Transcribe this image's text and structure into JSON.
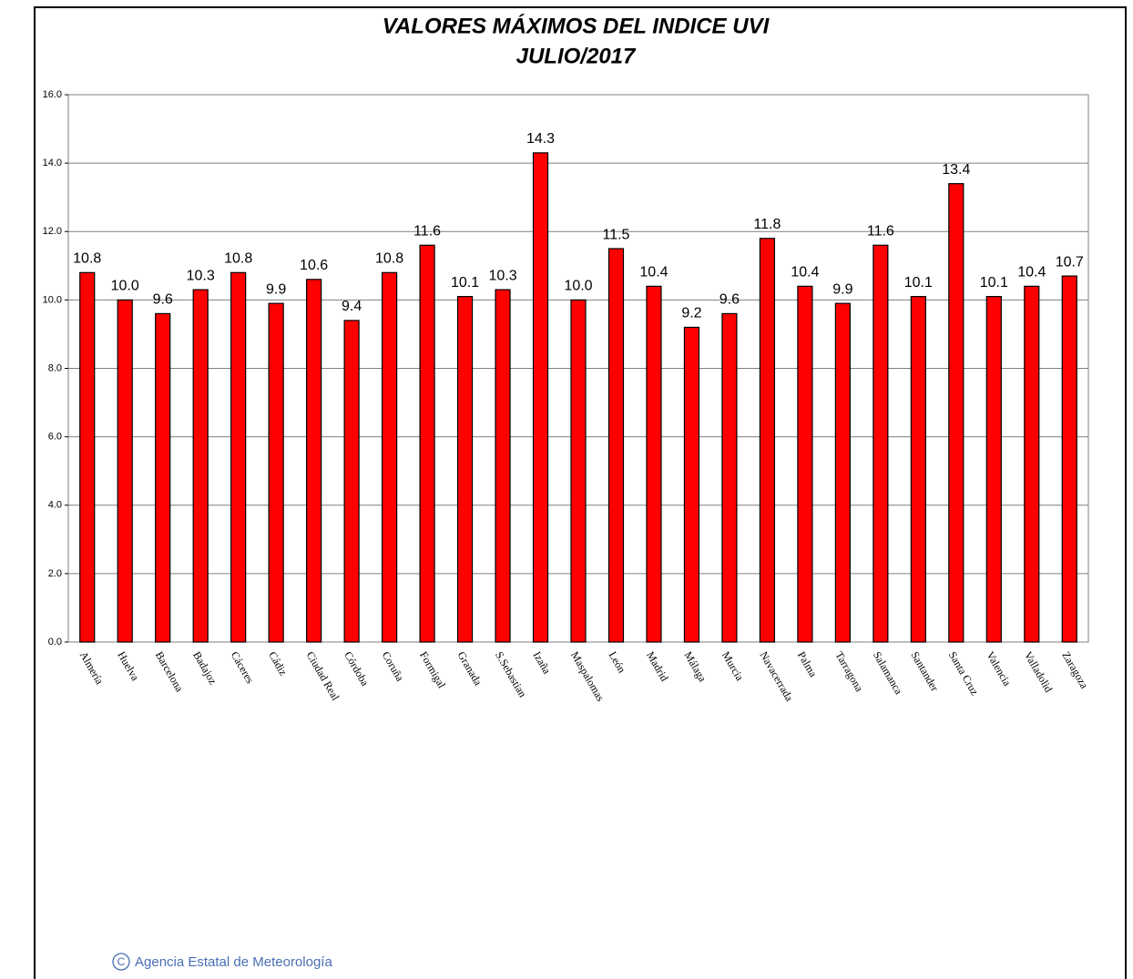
{
  "chart_data": {
    "type": "bar",
    "title": "VALORES MÁXIMOS DEL INDICE UVI",
    "subtitle": "JULIO/2017",
    "categories": [
      "Almería",
      "Huelva",
      "Barcelona",
      "Badajoz",
      "Cáceres",
      "Cádiz",
      "Ciudad Real",
      "Córdoba",
      "Coruña",
      "Formigal",
      "Granada",
      "S.Sebastian",
      "Izaña",
      "Maspalomas",
      "León",
      "Madrid",
      "Málaga",
      "Murcia",
      "Navacerrada",
      "Palma",
      "Tarragona",
      "Salamanca",
      "Santander",
      "Santa Cruz",
      "Valencia",
      "Valladolid",
      "Zaragoza"
    ],
    "values": [
      10.8,
      10.0,
      9.6,
      10.3,
      10.8,
      9.9,
      10.6,
      9.4,
      10.8,
      11.6,
      10.1,
      10.3,
      14.3,
      10.0,
      11.5,
      10.4,
      9.2,
      9.6,
      11.8,
      10.4,
      9.9,
      11.6,
      10.1,
      13.4,
      10.1,
      10.4,
      10.7
    ],
    "value_labels": [
      "10.8",
      "10.0",
      "9.6",
      "10.3",
      "10.8",
      "9.9",
      "10.6",
      "9.4",
      "10.8",
      "11.6",
      "10.1",
      "10.3",
      "14.3",
      "10.0",
      "11.5",
      "10.4",
      "9.2",
      "9.6",
      "11.8",
      "10.4",
      "9.9",
      "11.6",
      "10.1",
      "13.4",
      "10.1",
      "10.4",
      "10.7"
    ],
    "color": "#ff0000",
    "ylim": [
      0,
      16
    ],
    "yticks": [
      {
        "value": 0,
        "label": "0.0"
      },
      {
        "value": 2,
        "label": "2.0"
      },
      {
        "value": 4,
        "label": "4.0"
      },
      {
        "value": 6,
        "label": "6.0"
      },
      {
        "value": 8,
        "label": "8.0"
      },
      {
        "value": 10,
        "label": "10.0"
      },
      {
        "value": 12,
        "label": "12.0"
      },
      {
        "value": 14,
        "label": "14.0"
      },
      {
        "value": 16,
        "label": "16.0"
      }
    ],
    "grid": true
  },
  "footer": {
    "credit": "Agencia Estatal de Meteorología"
  }
}
